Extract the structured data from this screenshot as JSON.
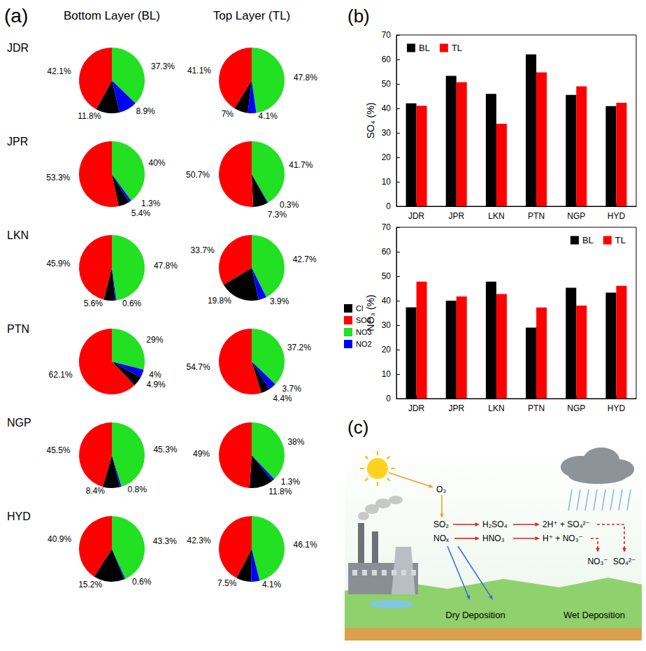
{
  "chart_data": [
    {
      "type": "pie",
      "panel": "(a)",
      "columns": [
        "Bottom Layer (BL)",
        "Top Layer (TL)"
      ],
      "categories": [
        "Cl",
        "SO4",
        "NO3",
        "NO2"
      ],
      "colors": [
        "#000000",
        "#ff0000",
        "#22e022",
        "#0000ff"
      ],
      "data_labels": true,
      "legend": "right",
      "rows": [
        {
          "name": "JDR",
          "values": [
            [
              11.8,
              42.1,
              37.3,
              8.9
            ],
            [
              7,
              41.1,
              47.8,
              4.1
            ]
          ],
          "value_labels": [
            [
              "11.8%",
              "42.1%",
              "37.3%",
              "8.9%"
            ],
            [
              "7%",
              "41.1%",
              "47.8%",
              "4.1%"
            ]
          ]
        },
        {
          "name": "JPR",
          "values": [
            [
              5.4,
              53.3,
              40,
              1.3
            ],
            [
              7.3,
              50.7,
              41.7,
              0.3
            ]
          ],
          "value_labels": [
            [
              "5.4%",
              "53.3%",
              "40%",
              "1.3%"
            ],
            [
              "7.3%",
              "50.7%",
              "41.7%",
              "0.3%"
            ]
          ]
        },
        {
          "name": "LKN",
          "values": [
            [
              5.6,
              45.9,
              47.8,
              0.6
            ],
            [
              19.8,
              33.7,
              42.7,
              3.9
            ]
          ],
          "value_labels": [
            [
              "5.6%",
              "45.9%",
              "47.8%",
              "0.6%"
            ],
            [
              "19.8%",
              "33.7%",
              "42.7%",
              "3.9%"
            ]
          ]
        },
        {
          "name": "PTN",
          "values": [
            [
              4.9,
              62.1,
              29,
              4
            ],
            [
              4.4,
              54.7,
              37.2,
              3.7
            ]
          ],
          "value_labels": [
            [
              "4.9%",
              "62.1%",
              "29%",
              "4%"
            ],
            [
              "4.4%",
              "54.7%",
              "37.2%",
              "3.7%"
            ]
          ]
        },
        {
          "name": "NGP",
          "values": [
            [
              8.4,
              45.5,
              45.3,
              0.8
            ],
            [
              11.8,
              49,
              38,
              1.3
            ]
          ],
          "value_labels": [
            [
              "8.4%",
              "45.5%",
              "45.3%",
              "0.8%"
            ],
            [
              "11.8%",
              "49%",
              "38%",
              "1.3%"
            ]
          ]
        },
        {
          "name": "HYD",
          "values": [
            [
              15.2,
              40.9,
              43.3,
              0.6
            ],
            [
              7.5,
              42.3,
              46.1,
              4.1
            ]
          ],
          "value_labels": [
            [
              "15.2%",
              "40.9%",
              "43.3%",
              "0.6%"
            ],
            [
              "7.5%",
              "42.3%",
              "46.1%",
              "4.1%"
            ]
          ]
        }
      ]
    },
    {
      "type": "bar",
      "panel": "(b)",
      "ylabel": "SO₄ (%)",
      "categories": [
        "JDR",
        "JPR",
        "LKN",
        "PTN",
        "NGP",
        "HYD"
      ],
      "series": [
        {
          "name": "BL",
          "color": "#000000",
          "values": [
            42.1,
            53.3,
            45.9,
            62.1,
            45.5,
            40.9
          ]
        },
        {
          "name": "TL",
          "color": "#ff0000",
          "values": [
            41.1,
            50.7,
            33.7,
            54.7,
            49,
            42.3
          ]
        }
      ],
      "ylim": [
        0,
        70
      ],
      "yticks": [
        0,
        10,
        20,
        30,
        40,
        50,
        60,
        70
      ],
      "grid": false,
      "legend": "upper left"
    },
    {
      "type": "bar",
      "ylabel": "NO₃ (%)",
      "categories": [
        "JDR",
        "JPR",
        "LKN",
        "PTN",
        "NGP",
        "HYD"
      ],
      "series": [
        {
          "name": "BL",
          "color": "#000000",
          "values": [
            37.3,
            40,
            47.8,
            29,
            45.3,
            43.3
          ]
        },
        {
          "name": "TL",
          "color": "#ff0000",
          "values": [
            47.8,
            41.7,
            42.7,
            37.2,
            38,
            46.1
          ]
        }
      ],
      "ylim": [
        0,
        70
      ],
      "yticks": [
        0,
        10,
        20,
        30,
        40,
        50,
        60,
        70
      ],
      "grid": false,
      "legend": "upper right"
    }
  ],
  "diagram": {
    "panel": "(c)",
    "labels": {
      "o3": "O₃",
      "so2": "SO₂",
      "nox": "NOₓ",
      "h2so4": "H₂SO₄",
      "hno3": "HNO₃",
      "sulfate_ions": "2H⁺ + SO₄²⁻",
      "nitrate_ions": "H⁺ + NO₃⁻",
      "nitrate": "NO₃⁻",
      "sulfate": "SO₄²⁻",
      "dry": "Dry Deposition",
      "wet": "Wet Deposition"
    }
  }
}
